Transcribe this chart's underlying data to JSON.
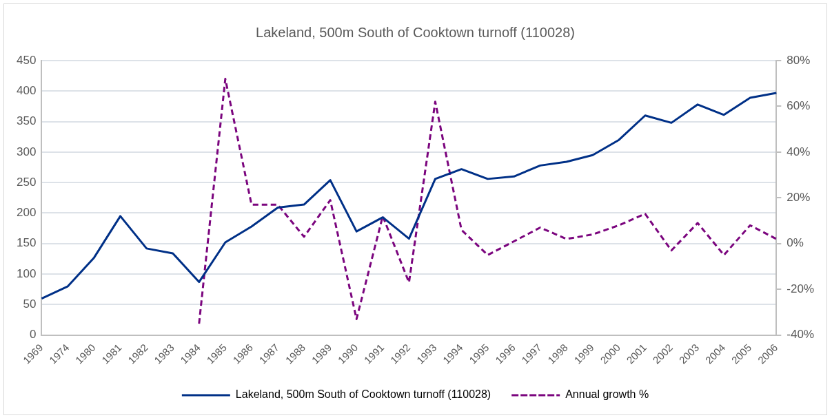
{
  "chart_data": {
    "type": "line",
    "title": "Lakeland, 500m South of Cooktown turnoff (110028)",
    "categories": [
      "1969",
      "1974",
      "1980",
      "1981",
      "1982",
      "1983",
      "1984",
      "1985",
      "1986",
      "1987",
      "1988",
      "1989",
      "1990",
      "1991",
      "1992",
      "1993",
      "1994",
      "1995",
      "1996",
      "1997",
      "1998",
      "1999",
      "2000",
      "2001",
      "2002",
      "2003",
      "2004",
      "2005",
      "2006"
    ],
    "series": [
      {
        "name": "Lakeland, 500m South of Cooktown turnoff (110028)",
        "color": "#003087",
        "line_style": "solid",
        "values": [
          60,
          80,
          127,
          195,
          142,
          134,
          87,
          152,
          178,
          209,
          214,
          254,
          170,
          193,
          158,
          256,
          272,
          256,
          260,
          278,
          284,
          295,
          320,
          360,
          348,
          378,
          361,
          389,
          397
        ]
      },
      {
        "name": "Annual growth %",
        "color": "#7b057e",
        "line_style": "dashed",
        "axis": "y2",
        "values": [
          null,
          null,
          null,
          null,
          null,
          null,
          -35,
          72,
          17,
          17,
          3,
          19,
          -33,
          12,
          -17,
          62,
          6,
          -5,
          1,
          7,
          2,
          4,
          8,
          13,
          -3,
          9,
          -5,
          8,
          2
        ]
      }
    ],
    "ylim": [
      0,
      450
    ],
    "yticks": [
      0,
      50,
      100,
      150,
      200,
      250,
      300,
      350,
      400,
      450
    ],
    "y2lim": [
      -40,
      80
    ],
    "y2ticks": [
      {
        "value": -40,
        "label": "-40%"
      },
      {
        "value": -20,
        "label": "-20%"
      },
      {
        "value": 0,
        "label": "0%"
      },
      {
        "value": 20,
        "label": "20%"
      },
      {
        "value": 40,
        "label": "40%"
      },
      {
        "value": 60,
        "label": "60%"
      },
      {
        "value": 80,
        "label": "80%"
      }
    ],
    "grid": "y",
    "legend": "bottom",
    "marker": "none"
  }
}
